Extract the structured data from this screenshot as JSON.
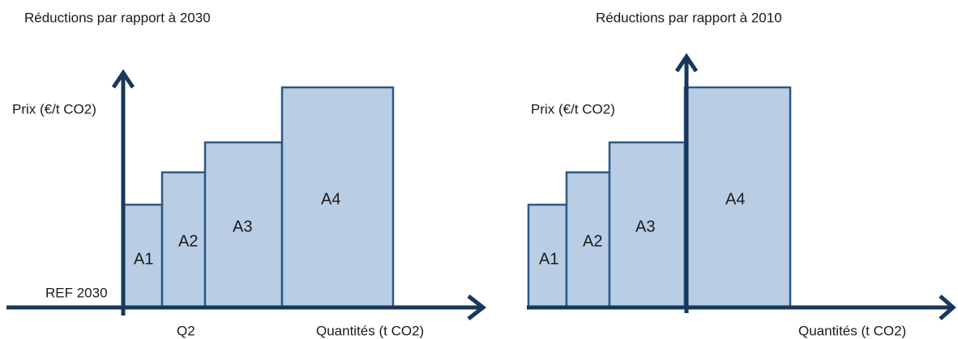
{
  "panels": [
    {
      "title": "Réductions par rapport à 2030",
      "y_label": "Prix (€/t CO2)",
      "x_label": "Quantités (t CO2)",
      "reference_label": "REF 2030",
      "quantity_label": "Q2",
      "blocks": [
        "A1",
        "A2",
        "A3",
        "A4"
      ]
    },
    {
      "title": "Réductions par rapport à 2010",
      "y_label": "Prix (€/t CO2)",
      "x_label": "Quantités (t CO2)",
      "blocks": [
        "A1",
        "A2",
        "A3",
        "A4"
      ]
    }
  ]
}
